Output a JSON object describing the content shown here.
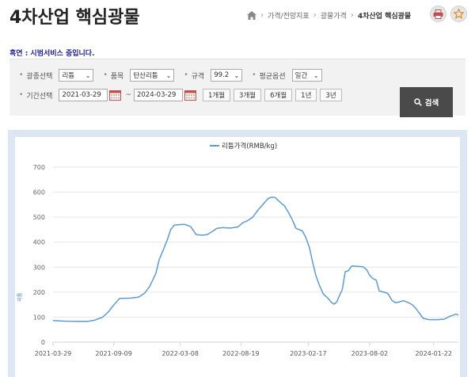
{
  "header": {
    "title": "4차산업 핵심광물",
    "breadcrumb": [
      "가격/전망지표",
      "광물가격",
      "4차산업 핵심광물"
    ]
  },
  "icons": {
    "home": "home-icon",
    "print": "print-icon",
    "favorite": "star-icon",
    "calendar": "calendar-icon",
    "search": "search-icon"
  },
  "notice": "혹연 : 시범서비스 중입니다.",
  "filters": {
    "mineral_label": "광종선택",
    "mineral_value": "리튬",
    "item_label": "품목",
    "item_value": "탄산리튬",
    "spec_label": "규격",
    "spec_value": "99.2",
    "avg_label": "평균옵션",
    "avg_value": "일간",
    "period_label": "기간선택",
    "start_date": "2021-03-29",
    "end_date": "2024-03-29",
    "tilde": "~",
    "period_buttons": [
      "1개월",
      "3개월",
      "6개월",
      "1년",
      "3년"
    ],
    "search_label": "검색"
  },
  "colors": {
    "line": "#5b9bd5",
    "search_bg": "#4a4a4a",
    "filter_bg": "#f2f2f2",
    "chart_frame": "#dce7f3",
    "notice": "#2020a0"
  },
  "chart_data": {
    "type": "line",
    "title": "",
    "xlabel": "",
    "ylabel": "리튬",
    "legend": "top",
    "grid": true,
    "ylim": [
      0,
      700
    ],
    "yticks": [
      "0",
      "100",
      "200",
      "300",
      "400",
      "500",
      "600",
      "700"
    ],
    "xlim": [
      "2021-03-29",
      "2024-03-29"
    ],
    "xticks": [
      "2021-03-29",
      "2021-09-09",
      "2022-03-08",
      "2022-08-19",
      "2023-02-17",
      "2023-08-02",
      "2024-01-22"
    ],
    "series": [
      {
        "name": "리튬가격(RMB/kg)",
        "points": [
          [
            "2021-03-29",
            86
          ],
          [
            "2021-05-01",
            84
          ],
          [
            "2021-06-01",
            83
          ],
          [
            "2021-07-01",
            83
          ],
          [
            "2021-07-20",
            88
          ],
          [
            "2021-08-10",
            100
          ],
          [
            "2021-08-25",
            120
          ],
          [
            "2021-09-10",
            150
          ],
          [
            "2021-09-25",
            175
          ],
          [
            "2021-10-25",
            176
          ],
          [
            "2021-11-15",
            180
          ],
          [
            "2021-12-01",
            195
          ],
          [
            "2021-12-15",
            222
          ],
          [
            "2022-01-01",
            275
          ],
          [
            "2022-01-10",
            330
          ],
          [
            "2022-01-20",
            365
          ],
          [
            "2022-02-01",
            410
          ],
          [
            "2022-02-10",
            450
          ],
          [
            "2022-02-20",
            468
          ],
          [
            "2022-03-05",
            470
          ],
          [
            "2022-03-20",
            471
          ],
          [
            "2022-04-05",
            462
          ],
          [
            "2022-04-20",
            430
          ],
          [
            "2022-05-05",
            428
          ],
          [
            "2022-05-20",
            430
          ],
          [
            "2022-06-05",
            445
          ],
          [
            "2022-06-15",
            455
          ],
          [
            "2022-07-01",
            458
          ],
          [
            "2022-07-20",
            456
          ],
          [
            "2022-08-10",
            460
          ],
          [
            "2022-08-25",
            478
          ],
          [
            "2022-09-05",
            485
          ],
          [
            "2022-09-20",
            500
          ],
          [
            "2022-10-05",
            530
          ],
          [
            "2022-10-20",
            555
          ],
          [
            "2022-11-01",
            575
          ],
          [
            "2022-11-10",
            580
          ],
          [
            "2022-11-20",
            578
          ],
          [
            "2022-12-01",
            562
          ],
          [
            "2022-12-15",
            545
          ],
          [
            "2022-12-25",
            520
          ],
          [
            "2023-01-05",
            490
          ],
          [
            "2023-01-15",
            455
          ],
          [
            "2023-02-01",
            445
          ],
          [
            "2023-02-10",
            420
          ],
          [
            "2023-02-20",
            380
          ],
          [
            "2023-03-01",
            320
          ],
          [
            "2023-03-10",
            265
          ],
          [
            "2023-03-20",
            225
          ],
          [
            "2023-03-30",
            192
          ],
          [
            "2023-04-10",
            178
          ],
          [
            "2023-04-20",
            160
          ],
          [
            "2023-04-28",
            152
          ],
          [
            "2023-05-05",
            160
          ],
          [
            "2023-05-12",
            185
          ],
          [
            "2023-05-20",
            210
          ],
          [
            "2023-05-28",
            282
          ],
          [
            "2023-06-05",
            285
          ],
          [
            "2023-06-15",
            305
          ],
          [
            "2023-07-01",
            303
          ],
          [
            "2023-07-15",
            302
          ],
          [
            "2023-07-25",
            290
          ],
          [
            "2023-08-01",
            270
          ],
          [
            "2023-08-10",
            255
          ],
          [
            "2023-08-20",
            248
          ],
          [
            "2023-08-28",
            205
          ],
          [
            "2023-09-10",
            200
          ],
          [
            "2023-09-20",
            195
          ],
          [
            "2023-10-01",
            168
          ],
          [
            "2023-10-10",
            158
          ],
          [
            "2023-10-20",
            160
          ],
          [
            "2023-11-01",
            166
          ],
          [
            "2023-11-15",
            158
          ],
          [
            "2023-11-25",
            150
          ],
          [
            "2023-12-05",
            135
          ],
          [
            "2023-12-15",
            115
          ],
          [
            "2023-12-25",
            95
          ],
          [
            "2024-01-10",
            90
          ],
          [
            "2024-02-01",
            90
          ],
          [
            "2024-02-20",
            92
          ],
          [
            "2024-03-05",
            103
          ],
          [
            "2024-03-15",
            108
          ],
          [
            "2024-03-22",
            112
          ],
          [
            "2024-03-29",
            108
          ]
        ]
      }
    ]
  }
}
